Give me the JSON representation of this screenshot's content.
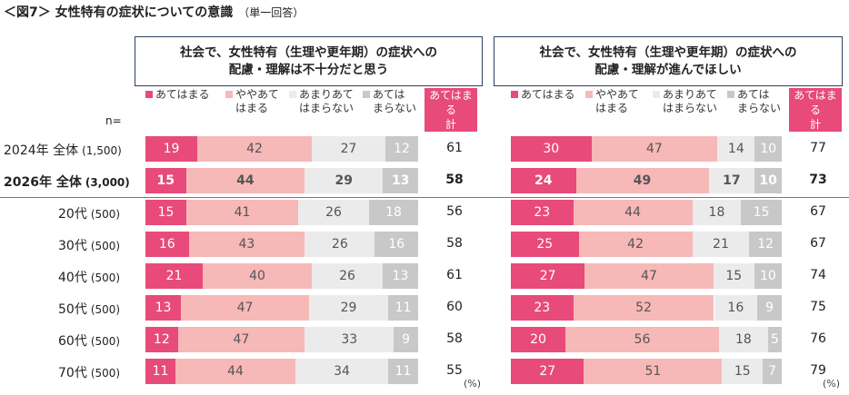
{
  "title": "＜図7＞ 女性特有の症状についての意識",
  "subtitle": "（単一回答）",
  "n_label": "n=",
  "percent_unit": "(%)",
  "total_header": "あてはまる\n計",
  "colors": {
    "s1": "#e84a7a",
    "s2": "#f7b8b8",
    "s3": "#ebebeb",
    "s4": "#c8c8c8",
    "total": "#e84a7a",
    "border": "#2c3e63"
  },
  "chart_data": [
    {
      "type": "bar",
      "stacked": true,
      "orientation": "horizontal",
      "title": "社会で、女性特有（生理や更年期）の症状への\n配慮・理解は不十分だと思う",
      "series_names": [
        "あてはまる",
        "ややあて\nはまる",
        "あまりあて\nはまらない",
        "あては\nまらない"
      ],
      "rows": [
        {
          "label": "2024年 全体",
          "n": "(1,500)",
          "values": [
            19,
            42,
            27,
            12
          ],
          "total": 61
        },
        {
          "label": "2026年 全体",
          "n": "(3,000)",
          "values": [
            15,
            44,
            29,
            13
          ],
          "total": 58
        },
        {
          "label": "20代",
          "n": "(500)",
          "values": [
            15,
            41,
            26,
            18
          ],
          "total": 56
        },
        {
          "label": "30代",
          "n": "(500)",
          "values": [
            16,
            43,
            26,
            16
          ],
          "total": 58
        },
        {
          "label": "40代",
          "n": "(500)",
          "values": [
            21,
            40,
            26,
            13
          ],
          "total": 61
        },
        {
          "label": "50代",
          "n": "(500)",
          "values": [
            13,
            47,
            29,
            11
          ],
          "total": 60
        },
        {
          "label": "60代",
          "n": "(500)",
          "values": [
            12,
            47,
            33,
            9
          ],
          "total": 58
        },
        {
          "label": "70代",
          "n": "(500)",
          "values": [
            11,
            44,
            34,
            11
          ],
          "total": 55
        }
      ]
    },
    {
      "type": "bar",
      "stacked": true,
      "orientation": "horizontal",
      "title": "社会で、女性特有（生理や更年期）の症状への\n配慮・理解が進んでほしい",
      "series_names": [
        "あてはまる",
        "ややあて\nはまる",
        "あまりあて\nはまらない",
        "あては\nまらない"
      ],
      "rows": [
        {
          "label": "2024年 全体",
          "n": "(1,500)",
          "values": [
            30,
            47,
            14,
            10
          ],
          "total": 77
        },
        {
          "label": "2026年 全体",
          "n": "(3,000)",
          "values": [
            24,
            49,
            17,
            10
          ],
          "total": 73
        },
        {
          "label": "20代",
          "n": "(500)",
          "values": [
            23,
            44,
            18,
            15
          ],
          "total": 67
        },
        {
          "label": "30代",
          "n": "(500)",
          "values": [
            25,
            42,
            21,
            12
          ],
          "total": 67
        },
        {
          "label": "40代",
          "n": "(500)",
          "values": [
            27,
            47,
            15,
            10
          ],
          "total": 74
        },
        {
          "label": "50代",
          "n": "(500)",
          "values": [
            23,
            52,
            16,
            9
          ],
          "total": 75
        },
        {
          "label": "60代",
          "n": "(500)",
          "values": [
            20,
            56,
            18,
            5
          ],
          "total": 76
        },
        {
          "label": "70代",
          "n": "(500)",
          "values": [
            27,
            51,
            15,
            7
          ],
          "total": 79
        }
      ]
    }
  ]
}
